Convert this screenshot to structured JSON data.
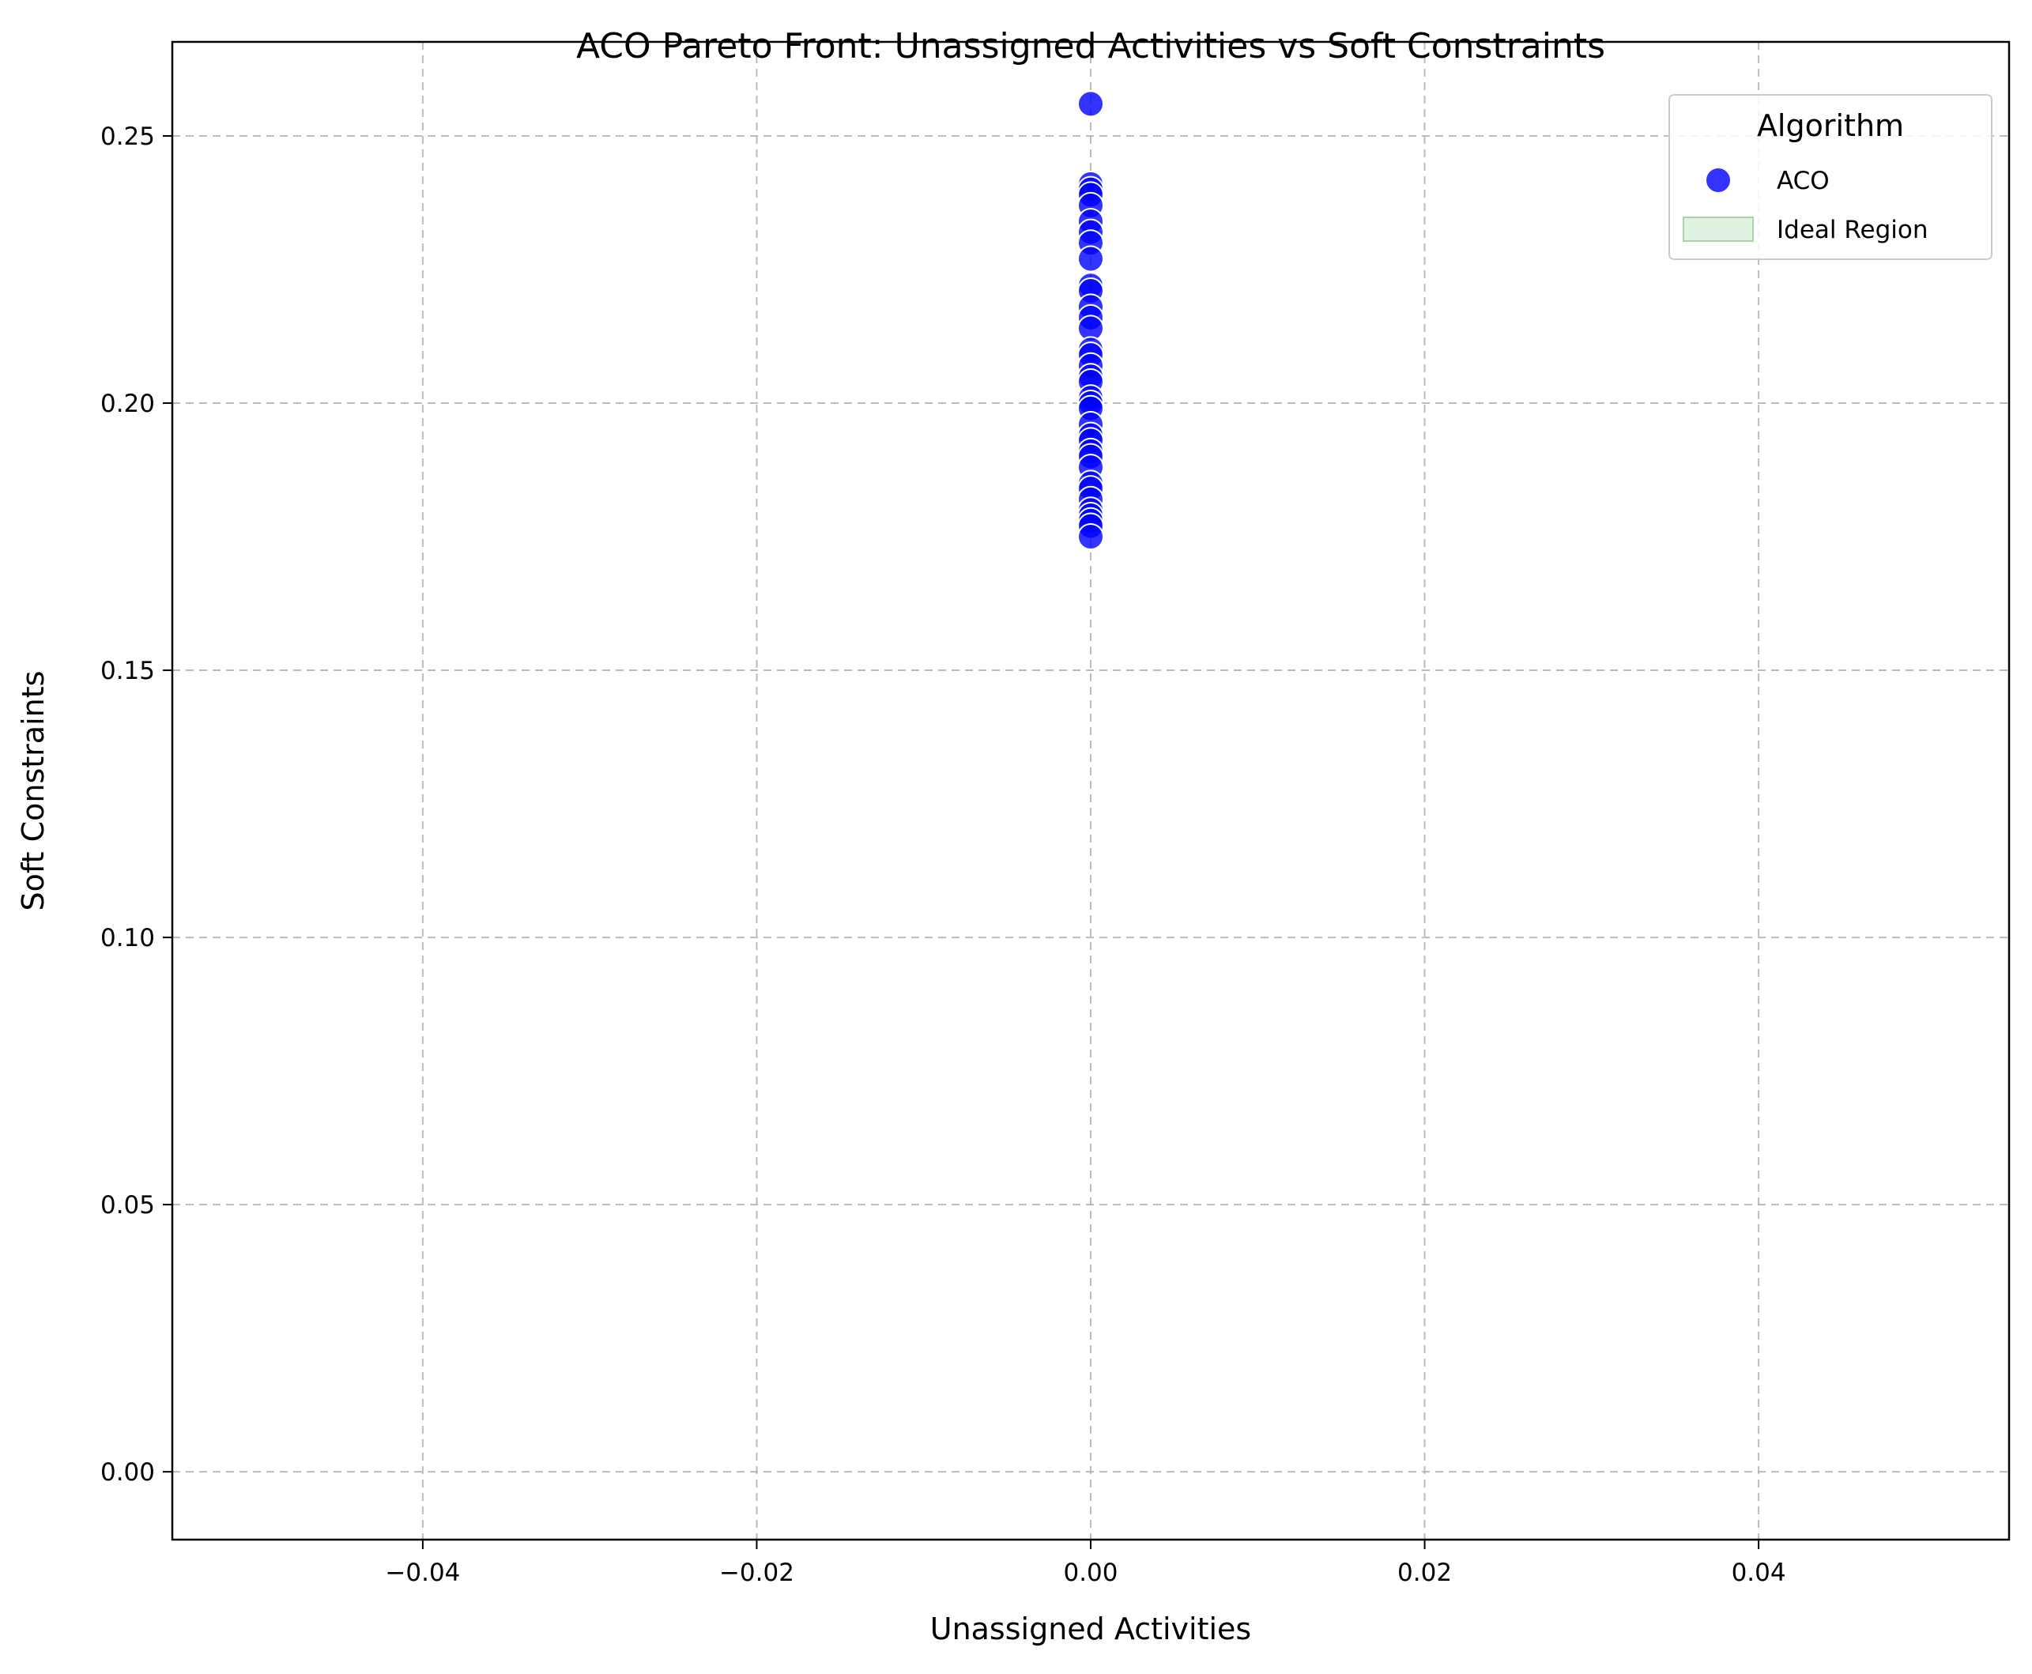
{
  "chart_data": {
    "type": "scatter",
    "title": "ACO Pareto Front: Unassigned Activities vs Soft Constraints",
    "xlabel": "Unassigned Activities",
    "ylabel": "Soft Constraints",
    "xlim": [
      -0.055,
      0.055
    ],
    "ylim": [
      -0.0127,
      0.2676
    ],
    "xticks": [
      -0.04,
      -0.02,
      0.0,
      0.02,
      0.04
    ],
    "xtick_labels": [
      "−0.04",
      "−0.02",
      "0.00",
      "0.02",
      "0.04"
    ],
    "yticks": [
      0.0,
      0.05,
      0.1,
      0.15,
      0.2,
      0.25
    ],
    "ytick_labels": [
      "0.00",
      "0.05",
      "0.10",
      "0.15",
      "0.20",
      "0.25"
    ],
    "grid": true,
    "legend": {
      "title": "Algorithm",
      "placement": "top-right",
      "entries": [
        {
          "label": "ACO",
          "kind": "marker",
          "color": "#0000ff"
        },
        {
          "label": "Ideal Region",
          "kind": "patch",
          "color": "#d8edd8"
        }
      ]
    },
    "series": [
      {
        "name": "ACO",
        "color": "#0000ff",
        "points": [
          {
            "x": 0,
            "y": 0.256
          },
          {
            "x": 0,
            "y": 0.241
          },
          {
            "x": 0,
            "y": 0.24
          },
          {
            "x": 0,
            "y": 0.239
          },
          {
            "x": 0,
            "y": 0.237
          },
          {
            "x": 0,
            "y": 0.234
          },
          {
            "x": 0,
            "y": 0.232
          },
          {
            "x": 0,
            "y": 0.23
          },
          {
            "x": 0,
            "y": 0.227
          },
          {
            "x": 0,
            "y": 0.222
          },
          {
            "x": 0,
            "y": 0.221
          },
          {
            "x": 0,
            "y": 0.218
          },
          {
            "x": 0,
            "y": 0.216
          },
          {
            "x": 0,
            "y": 0.214
          },
          {
            "x": 0,
            "y": 0.21
          },
          {
            "x": 0,
            "y": 0.209
          },
          {
            "x": 0,
            "y": 0.207
          },
          {
            "x": 0,
            "y": 0.205
          },
          {
            "x": 0,
            "y": 0.204
          },
          {
            "x": 0,
            "y": 0.201
          },
          {
            "x": 0,
            "y": 0.2
          },
          {
            "x": 0,
            "y": 0.199
          },
          {
            "x": 0,
            "y": 0.196
          },
          {
            "x": 0,
            "y": 0.194
          },
          {
            "x": 0,
            "y": 0.193
          },
          {
            "x": 0,
            "y": 0.191
          },
          {
            "x": 0,
            "y": 0.19
          },
          {
            "x": 0,
            "y": 0.188
          },
          {
            "x": 0,
            "y": 0.185
          },
          {
            "x": 0,
            "y": 0.184
          },
          {
            "x": 0,
            "y": 0.182
          },
          {
            "x": 0,
            "y": 0.18
          },
          {
            "x": 0,
            "y": 0.179
          },
          {
            "x": 0,
            "y": 0.178
          },
          {
            "x": 0,
            "y": 0.177
          },
          {
            "x": 0,
            "y": 0.175
          }
        ]
      }
    ]
  }
}
